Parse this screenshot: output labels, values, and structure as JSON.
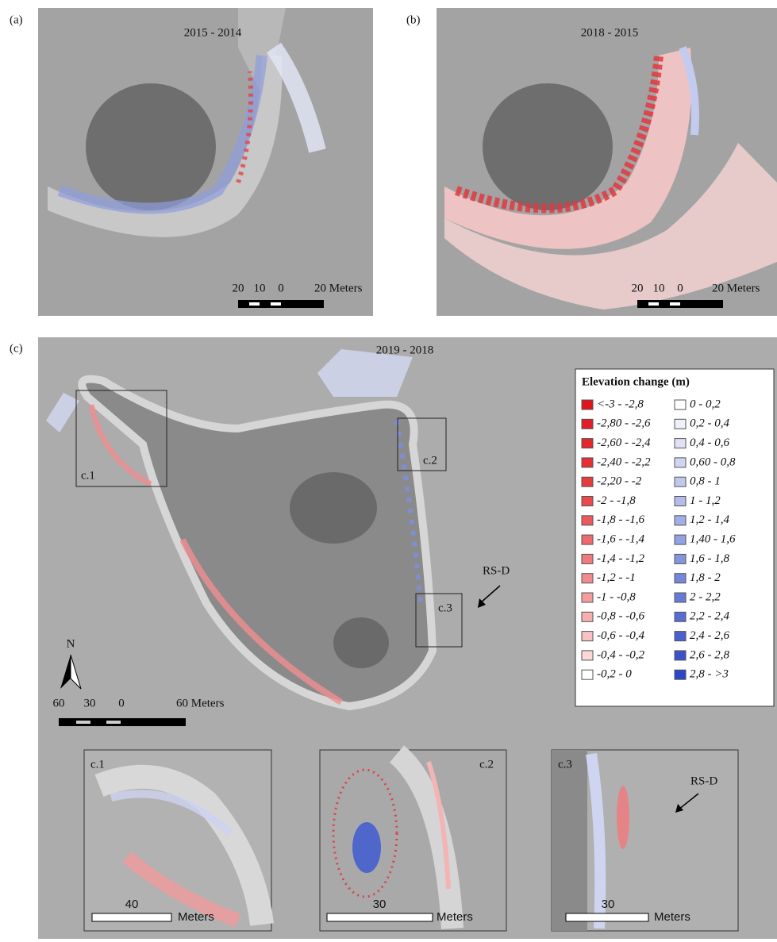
{
  "panels": [
    {
      "label": "(a)",
      "title": "2015 - 2014",
      "scale": [
        "20",
        "10",
        "0",
        "20 Meters"
      ]
    },
    {
      "label": "(b)",
      "title": "2018 - 2015",
      "scale": [
        "20",
        "10",
        "0",
        "20 Meters"
      ]
    },
    {
      "label": "(c)",
      "title": "2019 - 2018",
      "scale": [
        "60",
        "30",
        "0",
        "60 Meters"
      ],
      "north": "N",
      "boxes": [
        "c.1",
        "c.2",
        "c.3"
      ],
      "arrow_label": "RS-D"
    }
  ],
  "legend": {
    "title": "Elevation change (m)",
    "left": [
      {
        "label": "<-3 - -2,8",
        "color": "#e0141c"
      },
      {
        "label": "-2,80 - -2,6",
        "color": "#e21d24"
      },
      {
        "label": "-2,60 - -2,4",
        "color": "#e4272c"
      },
      {
        "label": "-2,40 - -2,2",
        "color": "#e63034"
      },
      {
        "label": "-2,20 - -2",
        "color": "#e83b3e"
      },
      {
        "label": "-2 - -1,8",
        "color": "#ea4a4c"
      },
      {
        "label": "-1,8 - -1,6",
        "color": "#ec5a5c"
      },
      {
        "label": "-1,6 - -1,4",
        "color": "#ee6a6c"
      },
      {
        "label": "-1,4 - -1,2",
        "color": "#f07a7c"
      },
      {
        "label": "-1,2 - -1",
        "color": "#f28b8c"
      },
      {
        "label": "-1 - -0,8",
        "color": "#f59c9c"
      },
      {
        "label": "-0,8 - -0,6",
        "color": "#f7aeae"
      },
      {
        "label": "-0,6 - -0,4",
        "color": "#f9c2c2"
      },
      {
        "label": "-0,4 - -0,2",
        "color": "#fbd7d7"
      },
      {
        "label": "-0,2 - 0",
        "color": "#ffffff"
      }
    ],
    "right": [
      {
        "label": "0 - 0,2",
        "color": "#ffffff"
      },
      {
        "label": "0,2 - 0,4",
        "color": "#eef0fa"
      },
      {
        "label": "0,4 - 0,6",
        "color": "#dfe2f6"
      },
      {
        "label": "0,60 - 0,8",
        "color": "#d0d5f2"
      },
      {
        "label": "0,8 - 1",
        "color": "#c1c8ee"
      },
      {
        "label": "1 - 1,2",
        "color": "#b2bbea"
      },
      {
        "label": "1,2 - 1,4",
        "color": "#a3aee6"
      },
      {
        "label": "1,40 - 1,6",
        "color": "#94a1e2"
      },
      {
        "label": "1,6 - 1,8",
        "color": "#8594de"
      },
      {
        "label": "1,8 - 2",
        "color": "#7687da"
      },
      {
        "label": "2 - 2,2",
        "color": "#677ad6"
      },
      {
        "label": "2,2 - 2,4",
        "color": "#586dd2"
      },
      {
        "label": "2,4 - 2,6",
        "color": "#4960ce"
      },
      {
        "label": "2,6 - 2,8",
        "color": "#3a53ca"
      },
      {
        "label": "2,8 - >3",
        "color": "#2b46c6"
      }
    ]
  },
  "insets": [
    {
      "label": "c.1",
      "scale": [
        "40",
        "Meters"
      ]
    },
    {
      "label": "c.2",
      "scale": [
        "30",
        "Meters"
      ]
    },
    {
      "label": "c.3",
      "scale": [
        "30",
        "Meters"
      ],
      "arrow_label": "RS-D"
    }
  ]
}
